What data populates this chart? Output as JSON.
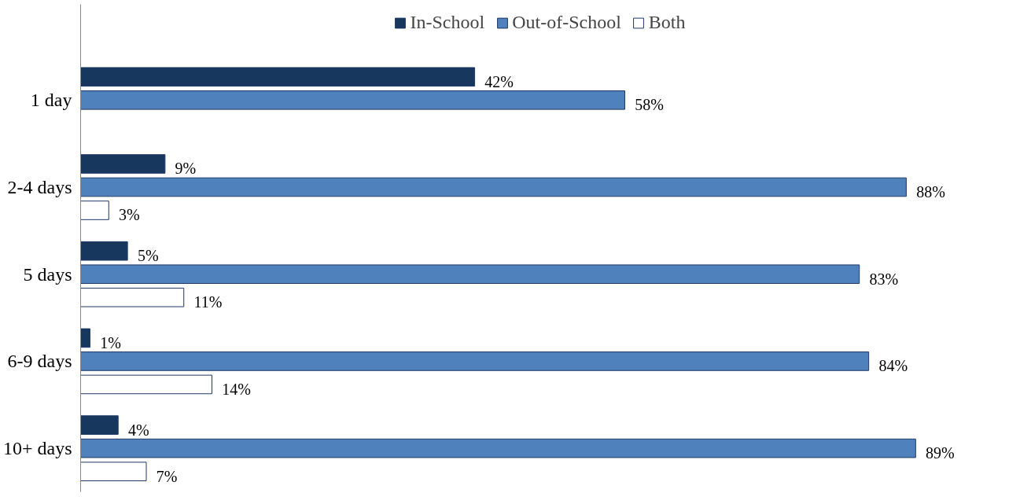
{
  "chart_data": {
    "type": "bar",
    "orientation": "horizontal",
    "categories": [
      "1 day",
      "2-4 days",
      "5 days",
      "6-9 days",
      "10+ days"
    ],
    "series": [
      {
        "name": "In-School",
        "color": "#17375e",
        "values": [
          42,
          9,
          5,
          1,
          4
        ],
        "value_labels": [
          "42%",
          "9%",
          "5%",
          "1%",
          "4%"
        ]
      },
      {
        "name": "Out-of-School",
        "color": "#4f81bd",
        "values": [
          58,
          88,
          83,
          84,
          89
        ],
        "value_labels": [
          "58%",
          "88%",
          "83%",
          "84%",
          "89%"
        ]
      },
      {
        "name": "Both",
        "color": "#ffffff",
        "values": [
          0,
          3,
          11,
          14,
          7
        ],
        "value_labels": [
          null,
          "3%",
          "11%",
          "14%",
          "7%"
        ]
      }
    ],
    "legend": "top",
    "grid": false
  }
}
